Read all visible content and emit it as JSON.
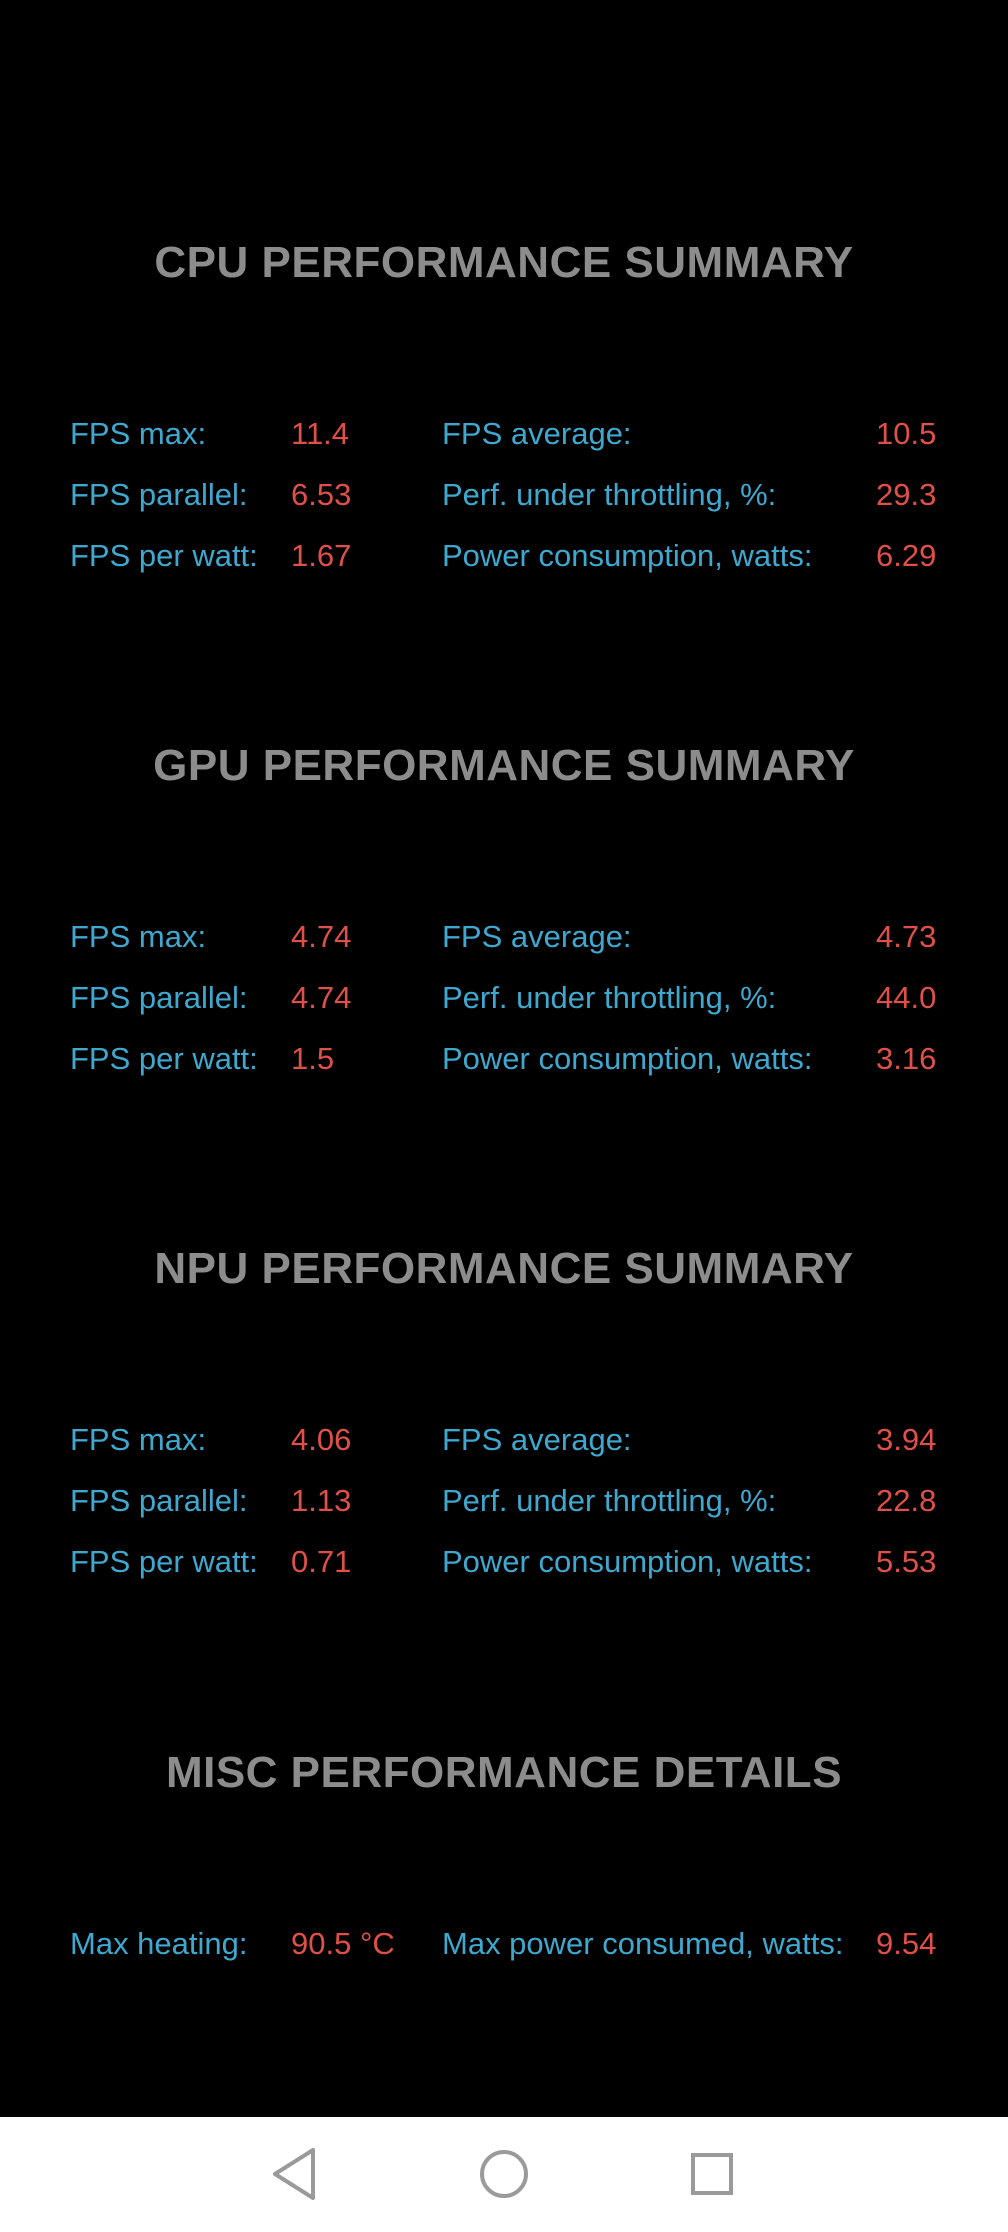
{
  "sections": [
    {
      "title": "CPU PERFORMANCE SUMMARY",
      "stats": {
        "fps_max": {
          "label": "FPS max:",
          "value": "11.4"
        },
        "fps_average": {
          "label": "FPS average:",
          "value": "10.5"
        },
        "fps_parallel": {
          "label": "FPS parallel:",
          "value": "6.53"
        },
        "perf_throttling": {
          "label": "Perf. under throttling, %:",
          "value": "29.3"
        },
        "fps_per_watt": {
          "label": "FPS per watt:",
          "value": "1.67"
        },
        "power_consumption": {
          "label": "Power consumption, watts:",
          "value": "6.29"
        }
      }
    },
    {
      "title": "GPU PERFORMANCE SUMMARY",
      "stats": {
        "fps_max": {
          "label": "FPS max:",
          "value": "4.74"
        },
        "fps_average": {
          "label": "FPS average:",
          "value": "4.73"
        },
        "fps_parallel": {
          "label": "FPS parallel:",
          "value": "4.74"
        },
        "perf_throttling": {
          "label": "Perf. under throttling, %:",
          "value": "44.0"
        },
        "fps_per_watt": {
          "label": "FPS per watt:",
          "value": "1.5"
        },
        "power_consumption": {
          "label": "Power consumption, watts:",
          "value": "3.16"
        }
      }
    },
    {
      "title": "NPU PERFORMANCE SUMMARY",
      "stats": {
        "fps_max": {
          "label": "FPS max:",
          "value": "4.06"
        },
        "fps_average": {
          "label": "FPS average:",
          "value": "3.94"
        },
        "fps_parallel": {
          "label": "FPS parallel:",
          "value": "1.13"
        },
        "perf_throttling": {
          "label": "Perf. under throttling, %:",
          "value": "22.8"
        },
        "fps_per_watt": {
          "label": "FPS per watt:",
          "value": "0.71"
        },
        "power_consumption": {
          "label": "Power consumption, watts:",
          "value": "5.53"
        }
      }
    }
  ],
  "misc": {
    "title": "MISC PERFORMANCE DETAILS",
    "max_heating": {
      "label": "Max heating:",
      "value": "90.5 °C"
    },
    "max_power": {
      "label": "Max power consumed, watts:",
      "value": "9.54"
    }
  },
  "navbar": {
    "back_icon": "triangle-back-icon",
    "home_icon": "circle-home-icon",
    "recents_icon": "square-recents-icon"
  },
  "colors": {
    "background": "#000000",
    "title": "#8c8c8c",
    "label": "#3ea8cf",
    "value": "#e0504a",
    "navbar": "#ffffff"
  }
}
